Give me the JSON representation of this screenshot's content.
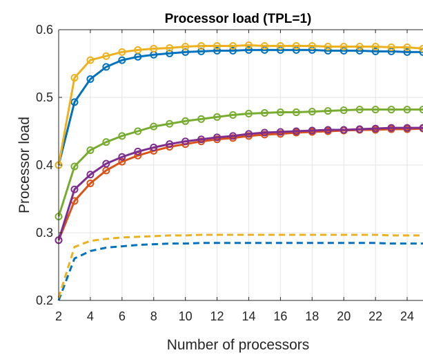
{
  "chart_data": {
    "type": "line",
    "title": "Processor load (TPL=1)",
    "xlabel": "Number of processors",
    "ylabel": "Processor load",
    "xlim": [
      2,
      25
    ],
    "ylim": [
      0.2,
      0.6
    ],
    "xticks": [
      2,
      4,
      6,
      8,
      10,
      12,
      14,
      16,
      18,
      20,
      22,
      24
    ],
    "yticks": [
      0.2,
      0.3,
      0.4,
      0.5,
      0.6
    ],
    "xtick_labels": [
      "2",
      "4",
      "6",
      "8",
      "10",
      "12",
      "14",
      "16",
      "18",
      "20",
      "22",
      "24"
    ],
    "ytick_labels": [
      "0.2",
      "0.3",
      "0.4",
      "0.5",
      "0.6"
    ],
    "grid": true,
    "x": [
      2,
      3,
      4,
      5,
      6,
      7,
      8,
      9,
      10,
      11,
      12,
      13,
      14,
      15,
      16,
      17,
      18,
      19,
      20,
      21,
      22,
      23,
      24,
      25
    ],
    "series": [
      {
        "color": "#0072BD",
        "style": "solid",
        "marker": "circle",
        "values": [
          0.4,
          0.493,
          0.527,
          0.545,
          0.555,
          0.56,
          0.563,
          0.565,
          0.567,
          0.568,
          0.569,
          0.569,
          0.57,
          0.57,
          0.57,
          0.57,
          0.57,
          0.569,
          0.569,
          0.569,
          0.568,
          0.568,
          0.567,
          0.567
        ]
      },
      {
        "color": "#D95319",
        "style": "solid",
        "marker": "circle",
        "values": [
          0.289,
          0.347,
          0.373,
          0.392,
          0.405,
          0.414,
          0.421,
          0.427,
          0.431,
          0.435,
          0.438,
          0.44,
          0.443,
          0.445,
          0.446,
          0.448,
          0.449,
          0.45,
          0.451,
          0.452,
          0.452,
          0.453,
          0.453,
          0.454
        ]
      },
      {
        "color": "#EDB120",
        "style": "solid",
        "marker": "circle",
        "values": [
          0.4,
          0.529,
          0.555,
          0.561,
          0.567,
          0.57,
          0.572,
          0.573,
          0.575,
          0.576,
          0.576,
          0.576,
          0.577,
          0.576,
          0.576,
          0.576,
          0.576,
          0.575,
          0.575,
          0.575,
          0.575,
          0.574,
          0.574,
          0.572
        ]
      },
      {
        "color": "#7E2F8E",
        "style": "solid",
        "marker": "circle",
        "values": [
          0.289,
          0.364,
          0.386,
          0.402,
          0.412,
          0.42,
          0.426,
          0.431,
          0.435,
          0.438,
          0.441,
          0.443,
          0.446,
          0.448,
          0.449,
          0.45,
          0.451,
          0.452,
          0.452,
          0.453,
          0.454,
          0.455,
          0.455,
          0.455
        ]
      },
      {
        "color": "#77AC30",
        "style": "solid",
        "marker": "circle",
        "values": [
          0.324,
          0.398,
          0.422,
          0.434,
          0.443,
          0.45,
          0.457,
          0.461,
          0.465,
          0.468,
          0.471,
          0.474,
          0.476,
          0.477,
          0.478,
          0.478,
          0.479,
          0.48,
          0.481,
          0.482,
          0.482,
          0.482,
          0.482,
          0.482
        ]
      },
      {
        "color": "#0072BD",
        "style": "dashed",
        "marker": "none",
        "values": [
          0.2,
          0.262,
          0.273,
          0.278,
          0.28,
          0.282,
          0.283,
          0.284,
          0.284,
          0.285,
          0.285,
          0.285,
          0.285,
          0.285,
          0.285,
          0.285,
          0.285,
          0.285,
          0.285,
          0.285,
          0.285,
          0.284,
          0.284,
          0.284
        ]
      },
      {
        "color": "#EDB120",
        "style": "dashed",
        "marker": "none",
        "values": [
          0.204,
          0.279,
          0.288,
          0.291,
          0.293,
          0.294,
          0.295,
          0.296,
          0.296,
          0.297,
          0.297,
          0.297,
          0.297,
          0.297,
          0.297,
          0.297,
          0.297,
          0.297,
          0.297,
          0.297,
          0.297,
          0.296,
          0.296,
          0.296
        ]
      }
    ]
  }
}
